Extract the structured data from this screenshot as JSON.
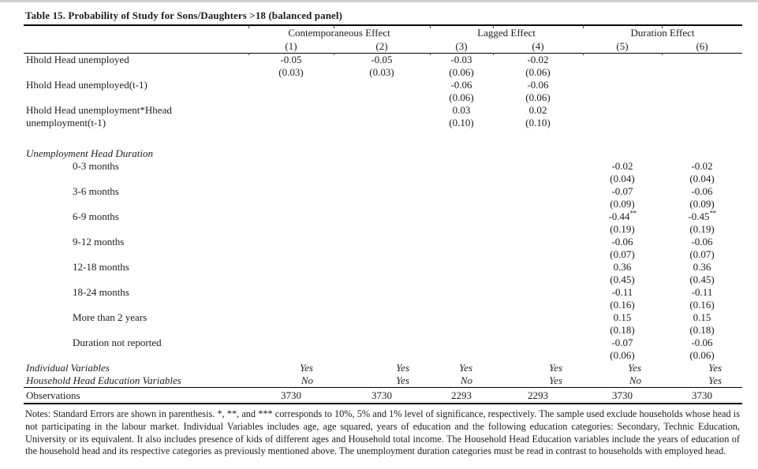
{
  "page": {
    "title": "Table 15. Probability of Study for Sons/Daughters >18 (balanced panel)"
  },
  "table": {
    "group_headers": [
      {
        "label": "Contemporaneous Effect",
        "span": 2
      },
      {
        "label": "Lagged Effect",
        "span": 2
      },
      {
        "label": "Duration Effect",
        "span": 2
      }
    ],
    "column_numbers": [
      "(1)",
      "(2)",
      "(3)",
      "(4)",
      "(5)",
      "(6)"
    ],
    "rows": [
      {
        "type": "coef",
        "label": "Hhold Head unemployed",
        "label2": "",
        "indent": 0,
        "coefs": [
          "-0.05",
          "-0.05",
          "-0.03",
          "-0.02",
          "",
          ""
        ],
        "stars": [
          "",
          "",
          "",
          "",
          "",
          ""
        ],
        "ses": [
          "(0.03)",
          "(0.03)",
          "(0.06)",
          "(0.06)",
          "",
          ""
        ]
      },
      {
        "type": "coef",
        "label": "Hhold Head unemployed(t-1)",
        "label2": "",
        "indent": 0,
        "coefs": [
          "",
          "",
          "-0.06",
          "-0.06",
          "",
          ""
        ],
        "stars": [
          "",
          "",
          "",
          "",
          "",
          ""
        ],
        "ses": [
          "",
          "",
          "(0.06)",
          "(0.06)",
          "",
          ""
        ]
      },
      {
        "type": "coef",
        "label": "Hhold Head unemployment*Hhead",
        "label2": "unemployment(t-1)",
        "indent": 0,
        "coefs": [
          "",
          "",
          "0.03",
          "0.02",
          "",
          ""
        ],
        "stars": [
          "",
          "",
          "",
          "",
          "",
          ""
        ],
        "ses": [
          "",
          "",
          "(0.10)",
          "(0.10)",
          "",
          ""
        ]
      },
      {
        "type": "spacer"
      },
      {
        "type": "section",
        "label": "Unemployment Head Duration"
      },
      {
        "type": "coef",
        "label": "0-3 months",
        "label2": "",
        "indent": 1,
        "coefs": [
          "",
          "",
          "",
          "",
          "-0.02",
          "-0.02"
        ],
        "stars": [
          "",
          "",
          "",
          "",
          "",
          ""
        ],
        "ses": [
          "",
          "",
          "",
          "",
          "(0.04)",
          "(0.04)"
        ]
      },
      {
        "type": "coef",
        "label": "3-6 months",
        "label2": "",
        "indent": 1,
        "coefs": [
          "",
          "",
          "",
          "",
          "-0.07",
          "-0.06"
        ],
        "stars": [
          "",
          "",
          "",
          "",
          "",
          ""
        ],
        "ses": [
          "",
          "",
          "",
          "",
          "(0.09)",
          "(0.09)"
        ]
      },
      {
        "type": "coef",
        "label": "6-9 months",
        "label2": "",
        "indent": 1,
        "coefs": [
          "",
          "",
          "",
          "",
          "-0.44",
          "-0.45"
        ],
        "stars": [
          "",
          "",
          "",
          "",
          "**",
          "**"
        ],
        "ses": [
          "",
          "",
          "",
          "",
          "(0.19)",
          "(0.19)"
        ]
      },
      {
        "type": "coef",
        "label": "9-12 months",
        "label2": "",
        "indent": 1,
        "coefs": [
          "",
          "",
          "",
          "",
          "-0.06",
          "-0.06"
        ],
        "stars": [
          "",
          "",
          "",
          "",
          "",
          ""
        ],
        "ses": [
          "",
          "",
          "",
          "",
          "(0.07)",
          "(0.07)"
        ]
      },
      {
        "type": "coef",
        "label": "12-18 months",
        "label2": "",
        "indent": 1,
        "coefs": [
          "",
          "",
          "",
          "",
          "0.36",
          "0.36"
        ],
        "stars": [
          "",
          "",
          "",
          "",
          "",
          ""
        ],
        "ses": [
          "",
          "",
          "",
          "",
          "(0.45)",
          "(0.45)"
        ]
      },
      {
        "type": "coef",
        "label": "18-24 months",
        "label2": "",
        "indent": 1,
        "coefs": [
          "",
          "",
          "",
          "",
          "-0.11",
          "-0.11"
        ],
        "stars": [
          "",
          "",
          "",
          "",
          "",
          ""
        ],
        "ses": [
          "",
          "",
          "",
          "",
          "(0.16)",
          "(0.16)"
        ]
      },
      {
        "type": "coef",
        "label": "More than 2 years",
        "label2": "",
        "indent": 1,
        "coefs": [
          "",
          "",
          "",
          "",
          "0.15",
          "0.15"
        ],
        "stars": [
          "",
          "",
          "",
          "",
          "",
          ""
        ],
        "ses": [
          "",
          "",
          "",
          "",
          "(0.18)",
          "(0.18)"
        ]
      },
      {
        "type": "coef",
        "label": "Duration not reported",
        "label2": "",
        "indent": 1,
        "coefs": [
          "",
          "",
          "",
          "",
          "-0.07",
          "-0.06"
        ],
        "stars": [
          "",
          "",
          "",
          "",
          "",
          ""
        ],
        "ses": [
          "",
          "",
          "",
          "",
          "(0.06)",
          "(0.06)"
        ]
      }
    ],
    "controls": [
      {
        "label": "Individual Variables",
        "values": [
          "Yes",
          "Yes",
          "Yes",
          "Yes",
          "Yes",
          "Yes"
        ]
      },
      {
        "label": "Household Head Education Variables",
        "values": [
          "No",
          "Yes",
          "No",
          "Yes",
          "No",
          "Yes"
        ]
      }
    ],
    "observations": {
      "label": "Observations",
      "values": [
        "3730",
        "3730",
        "2293",
        "2293",
        "3730",
        "3730"
      ]
    }
  },
  "notes": "Notes: Standard Errors are shown in parenthesis. *, **, and *** corresponds to 10%, 5% and 1% level of significance, respectively. The sample used exclude households whose head is not participating in the labour market. Individual Variables includes age, age squared, years of education and the following education categories: Secondary, Technic Education, University or its equivalent. It also includes presence of kids of different ages and Household total income. The Household Head Education variables include the years of education of the household head and its respective categories as previously mentioned above. The unemployment duration categories must be read in contrast to households with employed head."
}
